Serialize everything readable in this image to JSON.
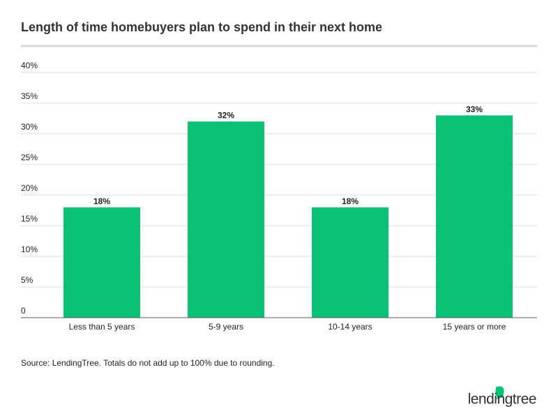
{
  "chart_data": {
    "type": "bar",
    "title": "Length of time homebuyers plan to spend in their next home",
    "categories": [
      "Less than 5 years",
      "5-9 years",
      "10-14 years",
      "15 years or more"
    ],
    "values": [
      18,
      32,
      18,
      33
    ],
    "value_labels": [
      "18%",
      "32%",
      "18%",
      "33%"
    ],
    "color": "#0ac276",
    "ylim": [
      0,
      40
    ],
    "yticks": [
      0,
      {
        "value": 5,
        "label": "5%"
      },
      {
        "value": 10,
        "label": "10%"
      },
      {
        "value": 15,
        "label": "15%"
      },
      {
        "value": 20,
        "label": "20%"
      },
      {
        "value": 25,
        "label": "25%"
      },
      {
        "value": 30,
        "label": "30%"
      },
      {
        "value": 35,
        "label": "35%"
      },
      {
        "value": 40,
        "label": "40%"
      }
    ],
    "grid": true,
    "source": "Source: LendingTree. Totals do not add up to 100% due to rounding.",
    "logo": "lendingtree"
  }
}
